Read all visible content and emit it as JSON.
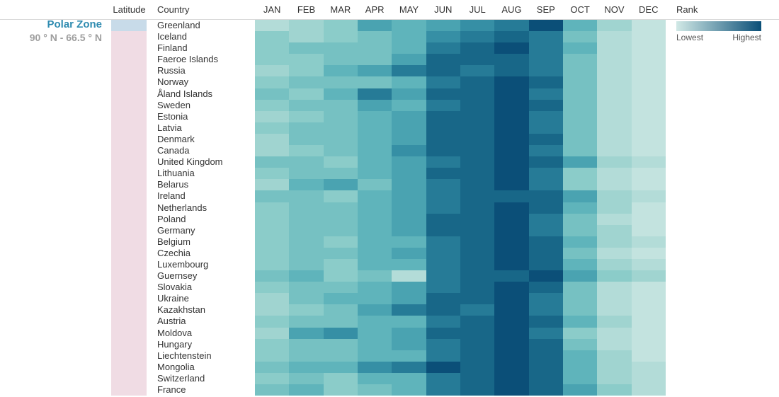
{
  "zone": {
    "name": "Polar Zone",
    "range": "90 ° N - 66.5 ° N"
  },
  "headers": {
    "latitude": "Latitude",
    "country": "Country",
    "rank": "Rank"
  },
  "months": [
    "JAN",
    "FEB",
    "MAR",
    "APR",
    "MAY",
    "JUN",
    "JUL",
    "AUG",
    "SEP",
    "OCT",
    "NOV",
    "DEC"
  ],
  "legend": {
    "low": "Lowest",
    "high": "Highest",
    "gradient_from": "#d1e9e6",
    "gradient_to": "#0b4f78"
  },
  "lat_colors": {
    "polar": "#c8dbe9",
    "temperate": "#f0dce4"
  },
  "rank_palette": [
    "#d1e9e6",
    "#c3e3df",
    "#b3dcd8",
    "#a0d4d0",
    "#8bccc9",
    "#76c1c2",
    "#5fb4bb",
    "#4aa3b1",
    "#368fa5",
    "#267b97",
    "#186788",
    "#0b4f78"
  ],
  "rows": [
    {
      "country": "Greenland",
      "lat": "polar",
      "ranks": [
        3,
        4,
        5,
        8,
        7,
        8,
        9,
        10,
        12,
        7,
        4,
        2
      ]
    },
    {
      "country": "Iceland",
      "lat": "temperate",
      "ranks": [
        5,
        4,
        5,
        6,
        7,
        9,
        10,
        11,
        10,
        6,
        3,
        2
      ]
    },
    {
      "country": "Finland",
      "lat": "temperate",
      "ranks": [
        5,
        6,
        6,
        6,
        7,
        10,
        11,
        12,
        10,
        7,
        3,
        2
      ]
    },
    {
      "country": "Faeroe Islands",
      "lat": "temperate",
      "ranks": [
        5,
        5,
        6,
        6,
        8,
        11,
        11,
        11,
        10,
        6,
        3,
        2
      ]
    },
    {
      "country": "Russia",
      "lat": "temperate",
      "ranks": [
        4,
        5,
        7,
        8,
        10,
        11,
        10,
        11,
        10,
        6,
        3,
        2
      ]
    },
    {
      "country": "Norway",
      "lat": "temperate",
      "ranks": [
        5,
        6,
        6,
        6,
        7,
        10,
        11,
        12,
        11,
        6,
        3,
        2
      ]
    },
    {
      "country": "Åland Islands",
      "lat": "temperate",
      "ranks": [
        6,
        5,
        7,
        10,
        8,
        11,
        11,
        12,
        10,
        6,
        3,
        2
      ]
    },
    {
      "country": "Sweden",
      "lat": "temperate",
      "ranks": [
        5,
        6,
        6,
        8,
        7,
        10,
        11,
        12,
        11,
        6,
        3,
        2
      ]
    },
    {
      "country": "Estonia",
      "lat": "temperate",
      "ranks": [
        4,
        5,
        6,
        7,
        8,
        11,
        11,
        12,
        10,
        6,
        3,
        2
      ]
    },
    {
      "country": "Latvia",
      "lat": "temperate",
      "ranks": [
        5,
        6,
        6,
        7,
        8,
        11,
        11,
        12,
        10,
        6,
        3,
        2
      ]
    },
    {
      "country": "Denmark",
      "lat": "temperate",
      "ranks": [
        4,
        6,
        6,
        7,
        8,
        11,
        11,
        12,
        11,
        6,
        3,
        2
      ]
    },
    {
      "country": "Canada",
      "lat": "temperate",
      "ranks": [
        4,
        5,
        6,
        7,
        9,
        11,
        11,
        12,
        10,
        6,
        3,
        2
      ]
    },
    {
      "country": "United Kingdom",
      "lat": "temperate",
      "ranks": [
        6,
        6,
        5,
        7,
        8,
        10,
        11,
        12,
        11,
        8,
        4,
        3
      ]
    },
    {
      "country": "Lithuania",
      "lat": "temperate",
      "ranks": [
        5,
        6,
        6,
        7,
        8,
        11,
        11,
        12,
        10,
        5,
        3,
        2
      ]
    },
    {
      "country": "Belarus",
      "lat": "temperate",
      "ranks": [
        4,
        7,
        8,
        6,
        8,
        10,
        11,
        12,
        10,
        5,
        3,
        2
      ]
    },
    {
      "country": "Ireland",
      "lat": "temperate",
      "ranks": [
        6,
        6,
        5,
        7,
        8,
        10,
        11,
        11,
        11,
        8,
        4,
        3
      ]
    },
    {
      "country": "Netherlands",
      "lat": "temperate",
      "ranks": [
        5,
        6,
        6,
        7,
        8,
        10,
        11,
        12,
        11,
        7,
        4,
        2
      ]
    },
    {
      "country": "Poland",
      "lat": "temperate",
      "ranks": [
        5,
        6,
        6,
        7,
        8,
        11,
        11,
        12,
        10,
        6,
        3,
        2
      ]
    },
    {
      "country": "Germany",
      "lat": "temperate",
      "ranks": [
        5,
        6,
        6,
        7,
        8,
        11,
        11,
        12,
        10,
        6,
        4,
        2
      ]
    },
    {
      "country": "Belgium",
      "lat": "temperate",
      "ranks": [
        5,
        6,
        5,
        7,
        7,
        10,
        11,
        12,
        11,
        7,
        4,
        3
      ]
    },
    {
      "country": "Czechia",
      "lat": "temperate",
      "ranks": [
        5,
        6,
        6,
        7,
        8,
        10,
        11,
        12,
        11,
        6,
        3,
        2
      ]
    },
    {
      "country": "Luxembourg",
      "lat": "temperate",
      "ranks": [
        5,
        6,
        5,
        7,
        7,
        10,
        11,
        12,
        11,
        7,
        4,
        3
      ]
    },
    {
      "country": "Guernsey",
      "lat": "temperate",
      "ranks": [
        6,
        7,
        5,
        6,
        3,
        10,
        11,
        11,
        12,
        8,
        5,
        4
      ]
    },
    {
      "country": "Slovakia",
      "lat": "temperate",
      "ranks": [
        5,
        6,
        6,
        7,
        8,
        10,
        11,
        12,
        11,
        6,
        3,
        2
      ]
    },
    {
      "country": "Ukraine",
      "lat": "temperate",
      "ranks": [
        4,
        6,
        7,
        7,
        8,
        11,
        11,
        12,
        10,
        6,
        3,
        2
      ]
    },
    {
      "country": "Kazakhstan",
      "lat": "temperate",
      "ranks": [
        4,
        5,
        6,
        8,
        10,
        11,
        10,
        12,
        10,
        6,
        3,
        2
      ]
    },
    {
      "country": "Austria",
      "lat": "temperate",
      "ranks": [
        5,
        6,
        6,
        7,
        7,
        10,
        11,
        12,
        11,
        7,
        4,
        2
      ]
    },
    {
      "country": "Moldova",
      "lat": "temperate",
      "ranks": [
        4,
        8,
        9,
        7,
        8,
        11,
        11,
        12,
        10,
        5,
        3,
        2
      ]
    },
    {
      "country": "Hungary",
      "lat": "temperate",
      "ranks": [
        5,
        6,
        6,
        7,
        8,
        10,
        11,
        12,
        11,
        6,
        3,
        2
      ]
    },
    {
      "country": "Liechtenstein",
      "lat": "temperate",
      "ranks": [
        5,
        6,
        6,
        7,
        7,
        10,
        11,
        12,
        11,
        7,
        4,
        2
      ]
    },
    {
      "country": "Mongolia",
      "lat": "temperate",
      "ranks": [
        6,
        7,
        7,
        9,
        10,
        12,
        11,
        12,
        11,
        7,
        4,
        3
      ]
    },
    {
      "country": "Switzerland",
      "lat": "temperate",
      "ranks": [
        5,
        6,
        5,
        7,
        7,
        10,
        11,
        12,
        11,
        7,
        4,
        3
      ]
    },
    {
      "country": "France",
      "lat": "temperate",
      "ranks": [
        6,
        7,
        5,
        6,
        7,
        10,
        11,
        12,
        11,
        8,
        5,
        3
      ]
    }
  ]
}
